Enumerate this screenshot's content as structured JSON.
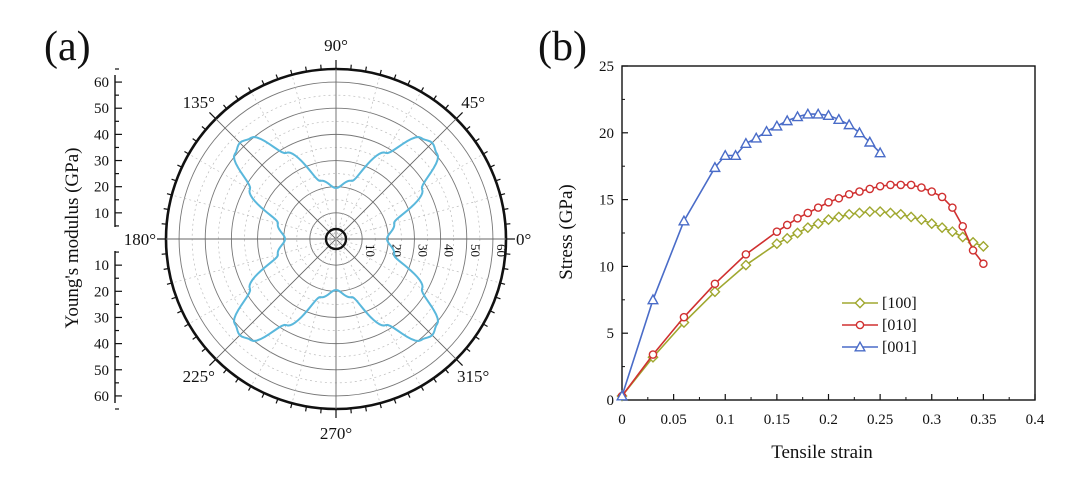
{
  "figure": {
    "panel_a_label": "(a)",
    "panel_b_label": "(b)"
  },
  "chart_data": [
    {
      "type": "polar",
      "ylabel": "Young's modulus (GPa)",
      "y_ticks": [
        10,
        20,
        30,
        40,
        50,
        60
      ],
      "r_ticks": [
        10,
        20,
        30,
        40,
        50,
        60
      ],
      "rlim": [
        0,
        65
      ],
      "angle_labels": [
        "0°",
        "45°",
        "90°",
        "135°",
        "180°",
        "225°",
        "270°",
        "315°"
      ],
      "grid": true,
      "series": [
        {
          "color": "#5ab8dc",
          "theta_deg": [
            0,
            15,
            30,
            40,
            45,
            50,
            60,
            75,
            90
          ],
          "r": [
            19.5,
            23,
            38,
            50.5,
            52,
            50.5,
            38,
            23,
            19.5
          ],
          "symmetry": "four-fold (mirrored about 0°/90°)"
        }
      ]
    },
    {
      "type": "line",
      "xlabel": "Tensile strain",
      "ylabel": "Stress (GPa)",
      "xlim": [
        0,
        0.4
      ],
      "ylim": [
        0,
        25
      ],
      "x_ticks": [
        "0",
        "0.05",
        "0.1",
        "0.15",
        "0.2",
        "0.25",
        "0.3",
        "0.35",
        "0.4"
      ],
      "y_ticks": [
        "0",
        "5",
        "10",
        "15",
        "20",
        "25"
      ],
      "legend_position": "center-right",
      "series": [
        {
          "name": "[100]",
          "color": "#a0a830",
          "marker": "diamond",
          "points": [
            [
              0,
              0.3
            ],
            [
              0.03,
              3.2
            ],
            [
              0.06,
              5.8
            ],
            [
              0.09,
              8.1
            ],
            [
              0.12,
              10.1
            ],
            [
              0.15,
              11.7
            ],
            [
              0.16,
              12.1
            ],
            [
              0.17,
              12.5
            ],
            [
              0.18,
              12.9
            ],
            [
              0.19,
              13.2
            ],
            [
              0.2,
              13.5
            ],
            [
              0.21,
              13.7
            ],
            [
              0.22,
              13.9
            ],
            [
              0.23,
              14.0
            ],
            [
              0.24,
              14.1
            ],
            [
              0.25,
              14.1
            ],
            [
              0.26,
              14.0
            ],
            [
              0.27,
              13.9
            ],
            [
              0.28,
              13.7
            ],
            [
              0.29,
              13.5
            ],
            [
              0.3,
              13.2
            ],
            [
              0.31,
              12.9
            ],
            [
              0.32,
              12.6
            ],
            [
              0.33,
              12.2
            ],
            [
              0.34,
              11.8
            ],
            [
              0.35,
              11.5
            ]
          ]
        },
        {
          "name": "[010]",
          "color": "#d03030",
          "marker": "circle",
          "points": [
            [
              0,
              0.3
            ],
            [
              0.03,
              3.4
            ],
            [
              0.06,
              6.2
            ],
            [
              0.09,
              8.7
            ],
            [
              0.12,
              10.9
            ],
            [
              0.15,
              12.6
            ],
            [
              0.16,
              13.1
            ],
            [
              0.17,
              13.6
            ],
            [
              0.18,
              14.0
            ],
            [
              0.19,
              14.4
            ],
            [
              0.2,
              14.8
            ],
            [
              0.21,
              15.1
            ],
            [
              0.22,
              15.4
            ],
            [
              0.23,
              15.6
            ],
            [
              0.24,
              15.8
            ],
            [
              0.25,
              16.0
            ],
            [
              0.26,
              16.1
            ],
            [
              0.27,
              16.1
            ],
            [
              0.28,
              16.1
            ],
            [
              0.29,
              15.9
            ],
            [
              0.3,
              15.6
            ],
            [
              0.31,
              15.2
            ],
            [
              0.32,
              14.4
            ],
            [
              0.33,
              13.0
            ],
            [
              0.34,
              11.2
            ],
            [
              0.35,
              10.2
            ]
          ]
        },
        {
          "name": "[001]",
          "color": "#4a6cc8",
          "marker": "triangle",
          "points": [
            [
              0,
              0.3
            ],
            [
              0.03,
              7.5
            ],
            [
              0.06,
              13.4
            ],
            [
              0.09,
              17.4
            ],
            [
              0.1,
              18.3
            ],
            [
              0.11,
              18.3
            ],
            [
              0.12,
              19.2
            ],
            [
              0.13,
              19.6
            ],
            [
              0.14,
              20.1
            ],
            [
              0.15,
              20.5
            ],
            [
              0.16,
              20.9
            ],
            [
              0.17,
              21.2
            ],
            [
              0.18,
              21.4
            ],
            [
              0.19,
              21.4
            ],
            [
              0.2,
              21.3
            ],
            [
              0.21,
              21.0
            ],
            [
              0.22,
              20.6
            ],
            [
              0.23,
              20.0
            ],
            [
              0.24,
              19.3
            ],
            [
              0.25,
              18.5
            ]
          ]
        }
      ]
    }
  ]
}
